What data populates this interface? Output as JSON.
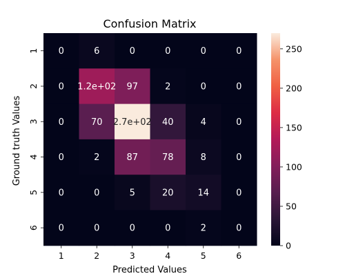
{
  "chart_data": {
    "type": "heatmap",
    "title": "Confusion Matrix",
    "xlabel": "Predicted Values",
    "ylabel": "Ground truth Values",
    "x_categories": [
      "1",
      "2",
      "3",
      "4",
      "5",
      "6"
    ],
    "y_categories": [
      "1",
      "2",
      "3",
      "4",
      "5",
      "6"
    ],
    "values": [
      [
        0,
        6,
        0,
        0,
        0,
        0
      ],
      [
        0,
        120,
        97,
        2,
        0,
        0
      ],
      [
        0,
        70,
        270,
        40,
        4,
        0
      ],
      [
        0,
        2,
        87,
        78,
        8,
        0
      ],
      [
        0,
        0,
        5,
        20,
        14,
        0
      ],
      [
        0,
        0,
        0,
        0,
        2,
        0
      ]
    ],
    "value_labels": [
      [
        "0",
        "6",
        "0",
        "0",
        "0",
        "0"
      ],
      [
        "0",
        "1.2e+02",
        "97",
        "2",
        "0",
        "0"
      ],
      [
        "0",
        "70",
        "2.7e+02",
        "40",
        "4",
        "0"
      ],
      [
        "0",
        "2",
        "87",
        "78",
        "8",
        "0"
      ],
      [
        "0",
        "0",
        "5",
        "20",
        "14",
        "0"
      ],
      [
        "0",
        "0",
        "0",
        "0",
        "2",
        "0"
      ]
    ],
    "colorbar": {
      "range": [
        0,
        270
      ],
      "ticks": [
        0,
        50,
        100,
        150,
        200,
        250
      ],
      "tick_labels": [
        "0",
        "50",
        "100",
        "150",
        "200",
        "250"
      ],
      "colormap": "rocket"
    }
  }
}
